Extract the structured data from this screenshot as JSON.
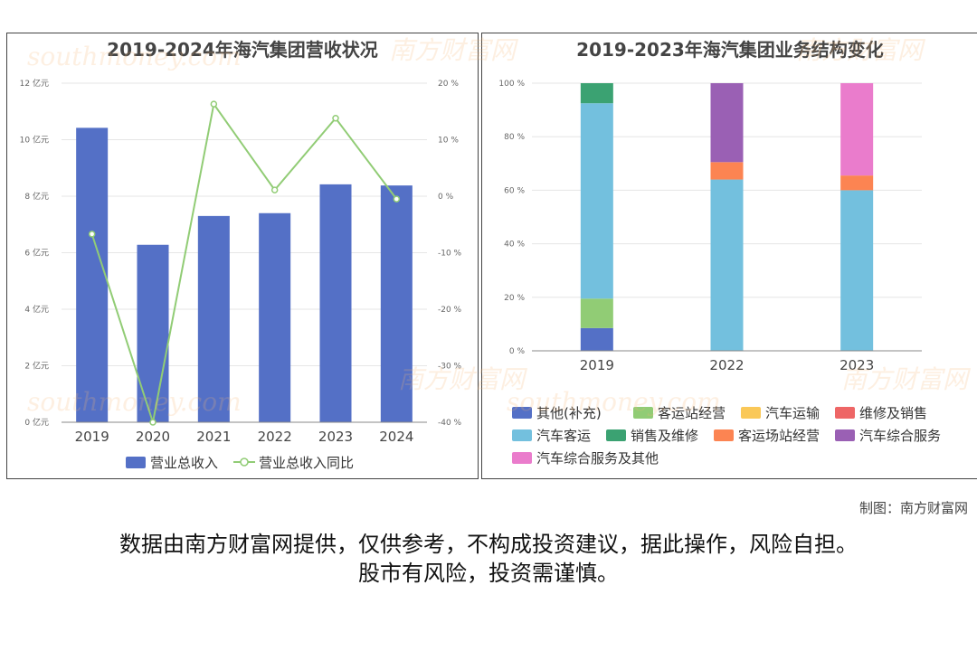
{
  "credit": "制图：南方财富网",
  "disclaimer": {
    "line1": "数据由南方财富网提供，仅供参考，不构成投资建议，据此操作，风险自担。",
    "line2": "股市有风险，投资需谨慎。"
  },
  "watermark": {
    "cn": "南方财富网",
    "en": "southmoney.com"
  },
  "colors": {
    "bar": "#5470c6",
    "line": "#91cc75",
    "grid": "#e6e6e6",
    "seg": {
      "其他(补充)": "#5470c6",
      "客运站经营": "#91cc75",
      "汽车运输": "#fac858",
      "维修及销售": "#ee6666",
      "汽车客运": "#73c0de",
      "销售及维修": "#3ba272",
      "客运场站经营": "#fc8452",
      "汽车综合服务": "#9a60b4",
      "汽车综合服务及其他": "#ea7ccc"
    }
  },
  "chart_data": [
    {
      "type": "bar",
      "title": "2019-2024年海汽集团营收状况",
      "categories": [
        "2019",
        "2020",
        "2021",
        "2022",
        "2023",
        "2024"
      ],
      "series": [
        {
          "name": "营业总收入",
          "type": "bar",
          "axis": "left",
          "values": [
            10.42,
            6.28,
            7.3,
            7.4,
            8.42,
            8.38
          ]
        },
        {
          "name": "营业总收入同比",
          "type": "line",
          "axis": "right",
          "values": [
            -6.7,
            -40.0,
            16.3,
            1.1,
            13.8,
            -0.5
          ]
        }
      ],
      "y_left": {
        "min": 0,
        "max": 12,
        "step": 2,
        "unit": "亿元",
        "ticks": [
          "0 亿元",
          "2 亿元",
          "4 亿元",
          "6 亿元",
          "8 亿元",
          "10 亿元",
          "12 亿元"
        ]
      },
      "y_right": {
        "min": -40,
        "max": 20,
        "step": 10,
        "unit": "%",
        "ticks": [
          "-40 %",
          "-30 %",
          "-20 %",
          "-10 %",
          "0 %",
          "10 %",
          "20 %"
        ]
      },
      "legend": [
        "营业总收入",
        "营业总收入同比"
      ],
      "legend_position": "bottom",
      "grid": true
    },
    {
      "type": "bar",
      "stacked": true,
      "title": "2019-2023年海汽集团业务结构变化",
      "categories": [
        "2019",
        "2022",
        "2023"
      ],
      "series": [
        {
          "name": "其他(补充)",
          "values": [
            8.5,
            0,
            0
          ]
        },
        {
          "name": "客运站经营",
          "values": [
            11.0,
            0,
            0
          ]
        },
        {
          "name": "汽车运输",
          "values": [
            0,
            0,
            0
          ]
        },
        {
          "name": "维修及销售",
          "values": [
            0,
            0,
            0
          ]
        },
        {
          "name": "汽车客运",
          "values": [
            73.0,
            64.0,
            60.0
          ]
        },
        {
          "name": "销售及维修",
          "values": [
            7.5,
            0,
            0
          ]
        },
        {
          "name": "客运场站经营",
          "values": [
            0,
            6.5,
            5.5
          ]
        },
        {
          "name": "汽车综合服务",
          "values": [
            0,
            29.5,
            0
          ]
        },
        {
          "name": "汽车综合服务及其他",
          "values": [
            0,
            0,
            34.5
          ]
        }
      ],
      "y": {
        "min": 0,
        "max": 100,
        "step": 20,
        "ticks": [
          "0 %",
          "20 %",
          "40 %",
          "60 %",
          "80 %",
          "100 %"
        ]
      },
      "legend": [
        "其他(补充)",
        "客运站经营",
        "汽车运输",
        "维修及销售",
        "汽车客运",
        "销售及维修",
        "客运场站经营",
        "汽车综合服务",
        "汽车综合服务及其他"
      ],
      "legend_position": "bottom",
      "grid": true
    }
  ]
}
